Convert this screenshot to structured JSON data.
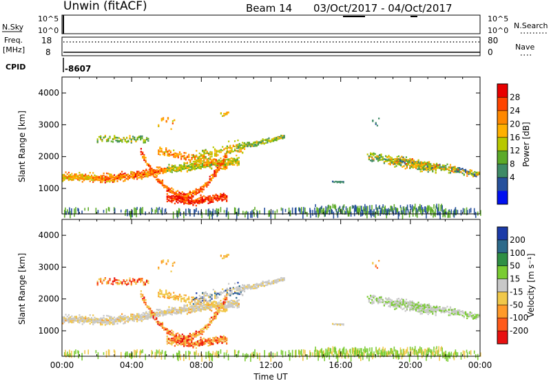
{
  "header": {
    "station": "Unwin (fitACF)",
    "beam": "Beam 14",
    "daterange": "03/Oct/2017 - 04/Oct/2017"
  },
  "chart_data": [
    {
      "type": "line",
      "name": "N.Sky / N.Search panel",
      "left_label": "N.Sky",
      "right_label": "N.Search",
      "left_ticks": [
        "10^5",
        "10^0"
      ],
      "right_ticks": [
        "10^5",
        "10^0"
      ]
    },
    {
      "type": "line",
      "name": "Freq / Nave panel",
      "left_label_line1": "Freq.",
      "left_label_line2": "[MHz]",
      "right_label": "Nave",
      "left_ticks": [
        "18",
        "8"
      ],
      "right_ticks": [
        "80",
        "0"
      ]
    },
    {
      "type": "table",
      "cpid_label": "CPID",
      "cpid_value": "-8607"
    },
    {
      "type": "heatmap",
      "quantity": "Power",
      "ylabel": "Slant Range [km]",
      "ylim": [
        200,
        4500
      ],
      "yticks": [
        1000,
        2000,
        3000,
        4000
      ],
      "xlim_hours": [
        0,
        24
      ],
      "colorbar_label": "Power [dB]",
      "colorbar_ticks": [
        "28",
        "24",
        "20",
        "16",
        "12",
        "8",
        "4"
      ],
      "colorbar_colors": [
        "#e80000",
        "#ff4400",
        "#ff8800",
        "#ffb000",
        "#b8c800",
        "#5caa28",
        "#3e8a66",
        "#26509c",
        "#0010f0"
      ]
    },
    {
      "type": "heatmap",
      "quantity": "Velocity",
      "ylabel": "Slant Range [km]",
      "ylim": [
        200,
        4500
      ],
      "yticks": [
        1000,
        2000,
        3000,
        4000
      ],
      "xlim_hours": [
        0,
        24
      ],
      "xticks": [
        "00:00",
        "04:00",
        "08:00",
        "12:00",
        "16:00",
        "20:00",
        "00:00"
      ],
      "xlabel": "Time UT",
      "colorbar_label": "Velocity [m s⁻¹]",
      "colorbar_ticks": [
        "200",
        "100",
        "50",
        "15",
        "-15",
        "-50",
        "-100",
        "-200"
      ],
      "colorbar_colors": [
        "#1b3aa8",
        "#2d6a8a",
        "#2f8f44",
        "#7acc32",
        "#c8c8c8",
        "#f0c84a",
        "#ff9a2a",
        "#ff5a1a",
        "#e81010"
      ]
    }
  ]
}
